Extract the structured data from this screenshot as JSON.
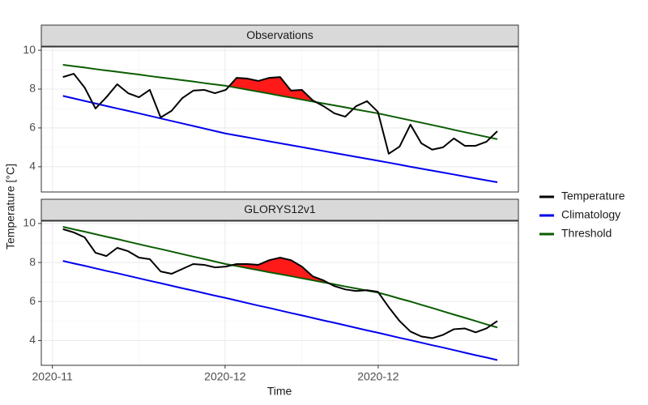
{
  "chart_data": {
    "type": "line",
    "xlabel": "Time",
    "ylabel": "Temperature [°C]",
    "grid": true,
    "legend_position": "right",
    "fill_color": "#ff1a1a",
    "legend": [
      {
        "name": "Temperature",
        "color": "#000000"
      },
      {
        "name": "Climatology",
        "color": "#0000ee"
      },
      {
        "name": "Threshold",
        "color": "#0a5c00"
      }
    ],
    "x": [
      0,
      1,
      2,
      3,
      4,
      5,
      6,
      7,
      8,
      9,
      10,
      11,
      12,
      13,
      14,
      15,
      16,
      17,
      18,
      19,
      20,
      21,
      22,
      23,
      24,
      25,
      26,
      27,
      28,
      29,
      30,
      31,
      32,
      33,
      34,
      35,
      36,
      37,
      38,
      39,
      40
    ],
    "xlim": [
      -1.99,
      41.94
    ],
    "xticks": [
      {
        "value": -0.97,
        "label": "2020-11"
      },
      {
        "value": 14.93,
        "label": "2020-12"
      },
      {
        "value": 29.03,
        "label": "2020-12"
      }
    ],
    "panels": [
      {
        "title": "Observations",
        "ylim": [
          2.7,
          10.17
        ],
        "yticks": [
          4,
          6,
          8,
          10
        ],
        "series": [
          {
            "values": [
              8.62,
              8.79,
              8.08,
              7.0,
              7.58,
              8.25,
              7.79,
              7.58,
              7.96,
              6.54,
              6.88,
              7.54,
              7.92,
              7.96,
              7.79,
              7.96,
              8.58,
              8.54,
              8.42,
              8.58,
              8.62,
              7.92,
              7.96,
              7.42,
              7.12,
              6.75,
              6.58,
              7.12,
              7.38,
              6.83,
              4.67,
              5.04,
              6.17,
              5.21,
              4.88,
              5.0,
              5.46,
              5.08,
              5.08,
              5.29,
              5.83
            ]
          },
          {
            "values": [
              7.65,
              7.52,
              7.39,
              7.26,
              7.13,
              7.0,
              6.88,
              6.75,
              6.62,
              6.49,
              6.36,
              6.23,
              6.1,
              5.97,
              5.84,
              5.71,
              5.61,
              5.51,
              5.41,
              5.31,
              5.21,
              5.11,
              5.01,
              4.91,
              4.81,
              4.71,
              4.61,
              4.51,
              4.41,
              4.31,
              4.21,
              4.11,
              4.0,
              3.9,
              3.8,
              3.7,
              3.6,
              3.5,
              3.4,
              3.3,
              3.2
            ]
          },
          {
            "values": [
              9.25,
              9.18,
              9.11,
              9.03,
              8.96,
              8.89,
              8.82,
              8.75,
              8.67,
              8.6,
              8.53,
              8.46,
              8.39,
              8.31,
              8.24,
              8.17,
              8.07,
              7.97,
              7.87,
              7.77,
              7.66,
              7.56,
              7.46,
              7.36,
              7.26,
              7.16,
              7.06,
              6.95,
              6.85,
              6.75,
              6.63,
              6.51,
              6.39,
              6.27,
              6.15,
              6.03,
              5.9,
              5.78,
              5.66,
              5.54,
              5.42
            ]
          }
        ]
      },
      {
        "title": "GLORYS12v1",
        "ylim": [
          2.73,
          10.12
        ],
        "yticks": [
          4,
          6,
          8,
          10
        ],
        "series": [
          {
            "values": [
              9.71,
              9.54,
              9.29,
              8.5,
              8.33,
              8.75,
              8.58,
              8.25,
              8.17,
              7.54,
              7.42,
              7.67,
              7.92,
              7.88,
              7.75,
              7.79,
              7.92,
              7.92,
              7.88,
              8.12,
              8.25,
              8.12,
              7.79,
              7.29,
              7.08,
              6.79,
              6.62,
              6.54,
              6.58,
              6.5,
              5.71,
              5.0,
              4.46,
              4.21,
              4.12,
              4.29,
              4.58,
              4.62,
              4.42,
              4.62,
              5.0
            ]
          },
          {
            "values": [
              8.08,
              7.95,
              7.83,
              7.7,
              7.57,
              7.45,
              7.32,
              7.19,
              7.06,
              6.94,
              6.81,
              6.68,
              6.56,
              6.43,
              6.3,
              6.18,
              6.05,
              5.92,
              5.79,
              5.67,
              5.54,
              5.41,
              5.29,
              5.16,
              5.03,
              4.91,
              4.78,
              4.65,
              4.52,
              4.4,
              4.27,
              4.14,
              4.02,
              3.89,
              3.76,
              3.64,
              3.51,
              3.38,
              3.25,
              3.13,
              3.0
            ]
          },
          {
            "values": [
              9.83,
              9.7,
              9.58,
              9.45,
              9.32,
              9.2,
              9.07,
              8.94,
              8.81,
              8.69,
              8.56,
              8.43,
              8.3,
              8.18,
              8.05,
              7.92,
              7.82,
              7.71,
              7.61,
              7.5,
              7.4,
              7.3,
              7.19,
              7.09,
              6.98,
              6.88,
              6.77,
              6.67,
              6.56,
              6.46,
              6.31,
              6.15,
              6.0,
              5.83,
              5.67,
              5.5,
              5.33,
              5.17,
              5.0,
              4.83,
              4.67
            ]
          }
        ]
      }
    ]
  }
}
